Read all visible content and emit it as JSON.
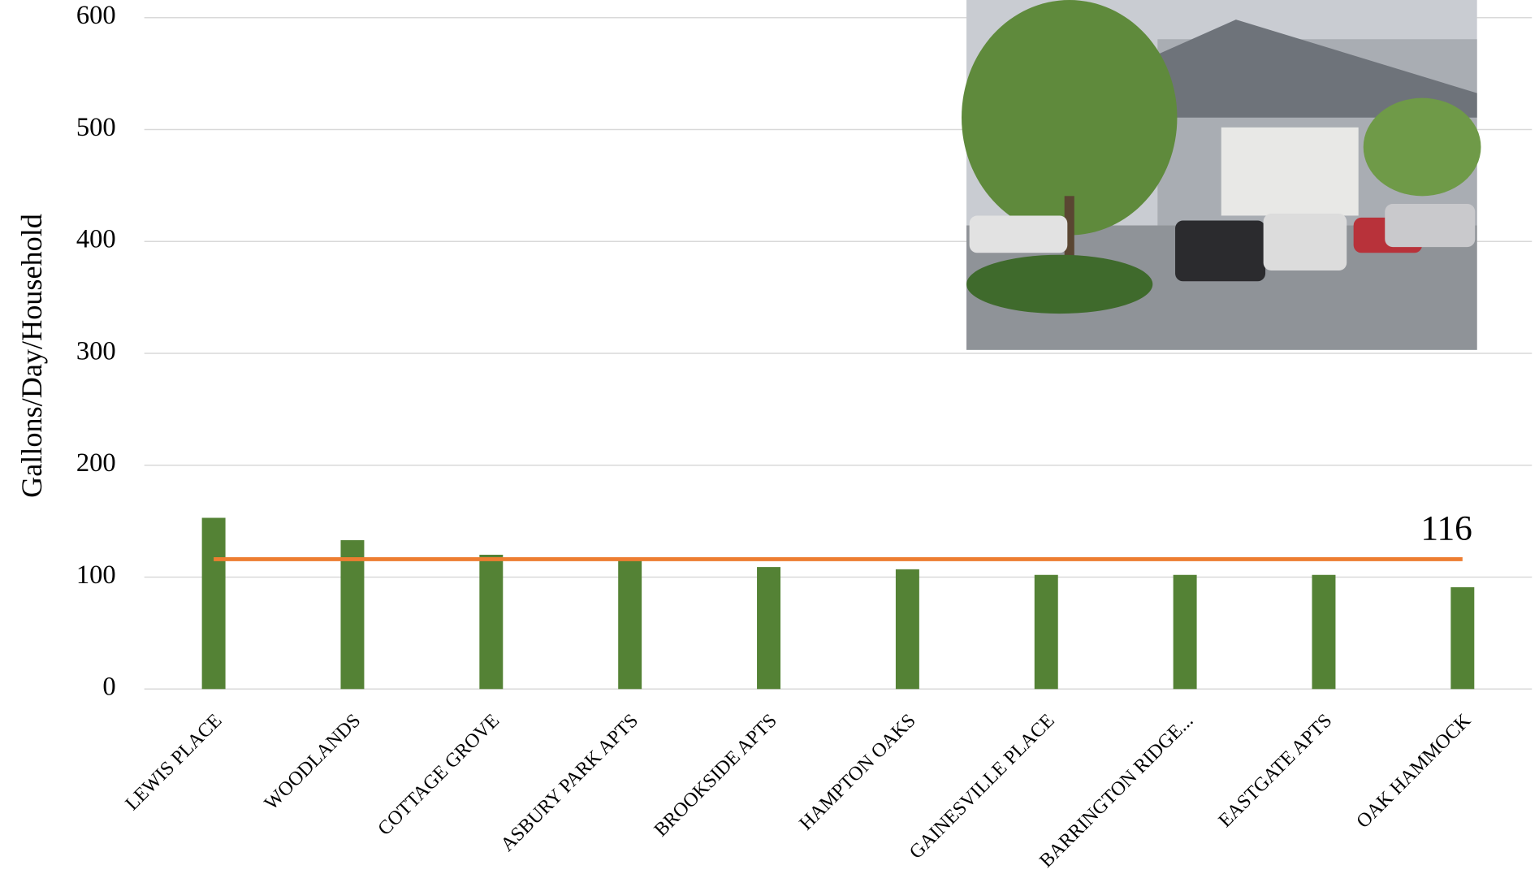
{
  "chart_data": {
    "type": "bar",
    "y_label": "Gallons/Day/Household",
    "categories": [
      "LEWIS PLACE",
      "WOODLANDS",
      "COTTAGE GROVE",
      "ASBURY PARK APTS",
      "BROOKSIDE APTS",
      "HAMPTON OAKS",
      "GAINESVILLE PLACE",
      "BARRINGTON RIDGE...",
      "EASTGATE APTS",
      "OAK HAMMOCK"
    ],
    "values": [
      153,
      133,
      120,
      117,
      109,
      107,
      102,
      102,
      102,
      91
    ],
    "color": "#548235",
    "reference_line": {
      "value": 116,
      "color": "#ed7d31"
    },
    "ylim": [
      0,
      600
    ],
    "yticks": [
      0,
      100,
      200,
      300,
      400,
      500,
      600
    ],
    "grid": true
  }
}
